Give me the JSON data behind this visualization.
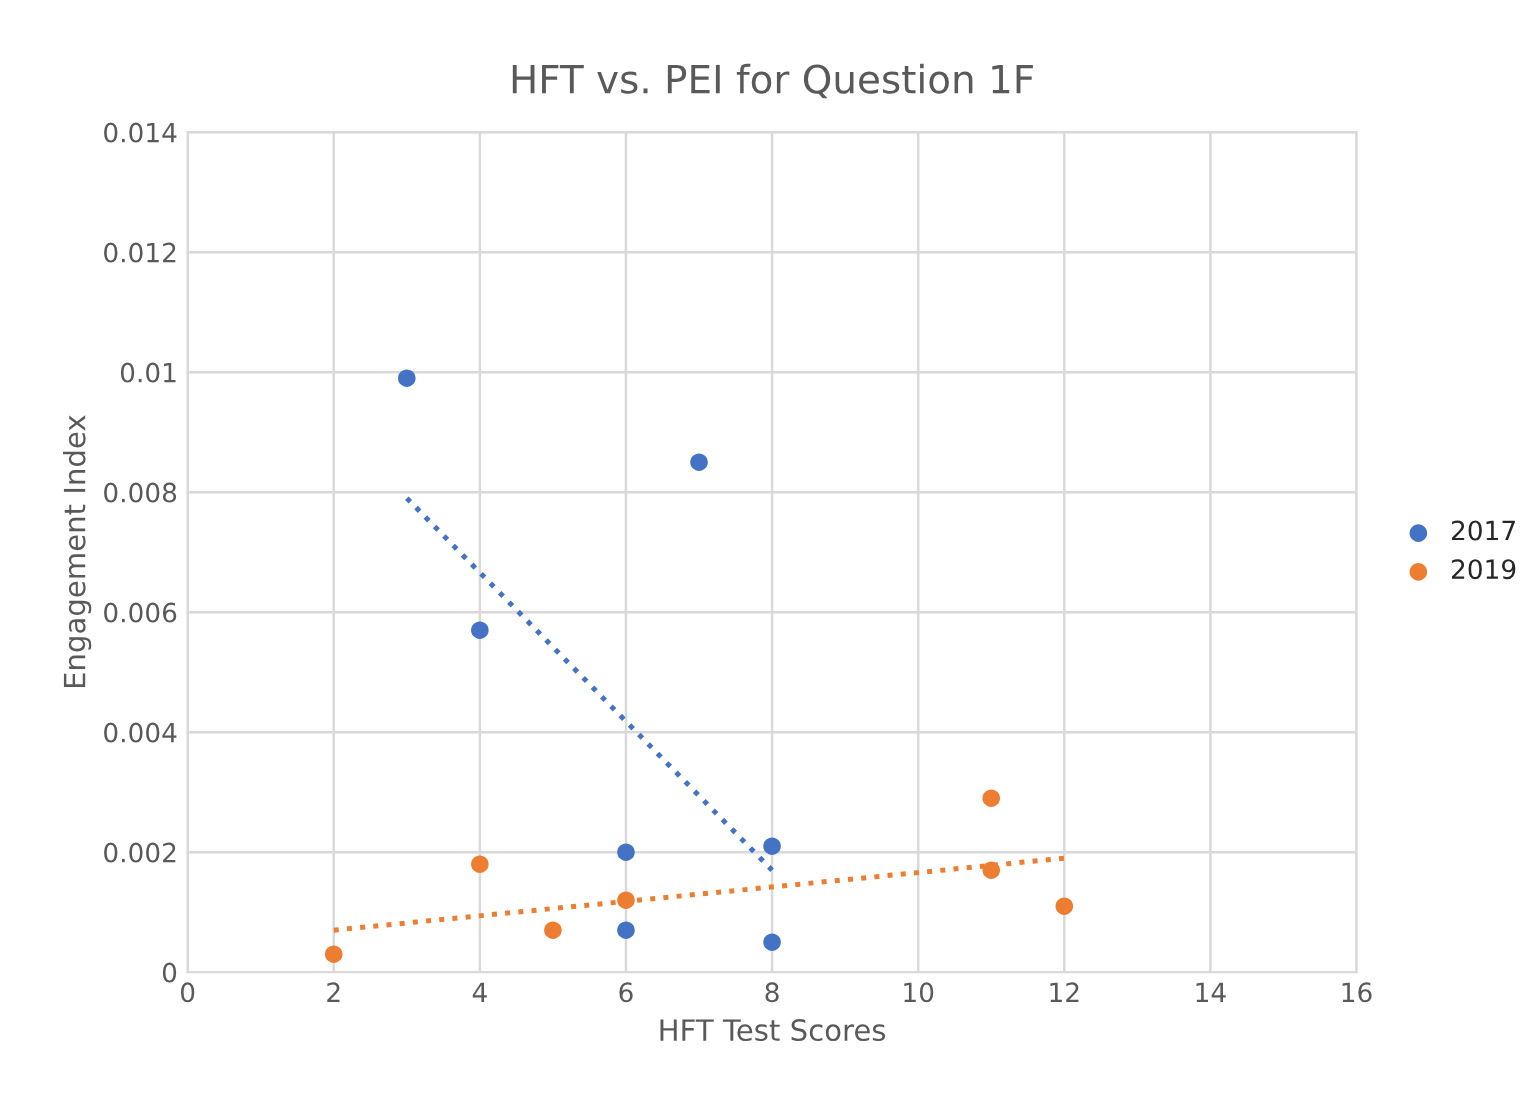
{
  "chart_data": {
    "type": "scatter",
    "title": "HFT vs. PEI for Question 1F",
    "xlabel": "HFT Test Scores",
    "ylabel": "Engagement Index",
    "series": [
      {
        "name": "2017",
        "color": "#4472c4",
        "marker": "circle",
        "x": [
          3,
          4,
          7,
          6,
          6,
          8,
          8
        ],
        "values": [
          0.0099,
          0.0057,
          0.0085,
          0.002,
          0.0007,
          0.0021,
          0.0005
        ]
      },
      {
        "name": "2019",
        "color": "#ed7d31",
        "marker": "circle",
        "x": [
          2,
          4,
          5,
          6,
          11,
          11,
          12
        ],
        "values": [
          0.0003,
          0.0018,
          0.0007,
          0.0012,
          0.0029,
          0.0017,
          0.0011
        ]
      },
      {
        "type": "line",
        "color": "#4472c4",
        "line_style": "dotted",
        "marker": "none",
        "x": [
          3,
          8
        ],
        "values": [
          0.0079,
          0.0017
        ]
      },
      {
        "type": "line",
        "color": "#ed7d31",
        "line_style": "dotted",
        "marker": "none",
        "x": [
          2,
          12
        ],
        "values": [
          0.0007,
          0.0019
        ]
      }
    ],
    "xlim": [
      0,
      16
    ],
    "xticks": [
      0,
      2,
      4,
      6,
      8,
      10,
      12,
      14,
      16
    ],
    "ylim": [
      0,
      0.014
    ],
    "yticks": [
      0,
      0.002,
      0.004,
      0.006,
      0.008,
      0.01,
      0.012,
      0.014
    ],
    "grid": true,
    "legend": "right"
  }
}
